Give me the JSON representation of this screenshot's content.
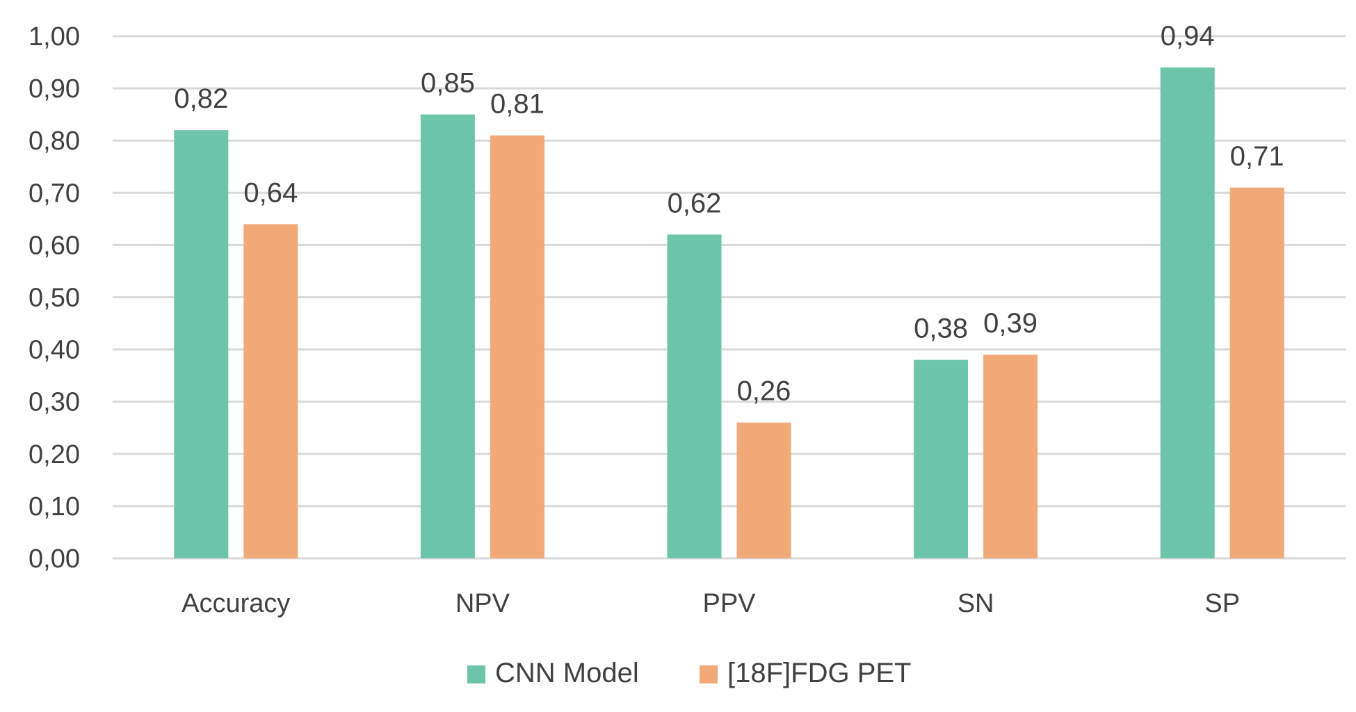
{
  "chart_data": {
    "type": "bar",
    "title": "",
    "xlabel": "",
    "ylabel": "",
    "categories": [
      "Accuracy",
      "NPV",
      "PPV",
      "SN",
      "SP"
    ],
    "series": [
      {
        "name": "CNN Model",
        "color": "#6cc5a8",
        "values": [
          0.82,
          0.85,
          0.62,
          0.38,
          0.94
        ],
        "labels": [
          "0,82",
          "0,85",
          "0,62",
          "0,38",
          "0,94"
        ]
      },
      {
        "name": "[18F]FDG PET",
        "color": "#f2a978",
        "values": [
          0.64,
          0.81,
          0.26,
          0.39,
          0.71
        ],
        "labels": [
          "0,64",
          "0,81",
          "0,26",
          "0,39",
          "0,71"
        ]
      }
    ],
    "ylim": [
      0,
      1
    ],
    "yticks": [
      0,
      0.1,
      0.2,
      0.3,
      0.4,
      0.5,
      0.6,
      0.7,
      0.8,
      0.9,
      1.0
    ],
    "ytick_labels": [
      "0,00",
      "0,10",
      "0,20",
      "0,30",
      "0,40",
      "0,50",
      "0,60",
      "0,70",
      "0,80",
      "0,90",
      "1,00"
    ],
    "grid": true,
    "legend_position": "bottom"
  }
}
